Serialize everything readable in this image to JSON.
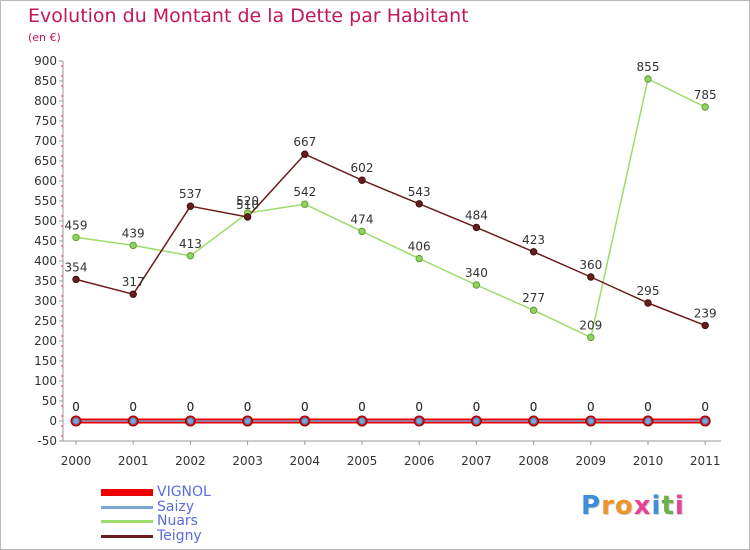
{
  "chart_data": {
    "type": "line",
    "title": "Evolution du Montant de la Dette par Habitant",
    "subtitle": "(en €)",
    "categories": [
      "2000",
      "2001",
      "2002",
      "2003",
      "2004",
      "2005",
      "2006",
      "2007",
      "2008",
      "2009",
      "2010",
      "2011"
    ],
    "ylim": [
      -50,
      900
    ],
    "yticks": [
      -50,
      0,
      50,
      100,
      150,
      200,
      250,
      300,
      350,
      400,
      450,
      500,
      550,
      600,
      650,
      700,
      750,
      800,
      850,
      900
    ],
    "grid": false,
    "legend_position": "bottom-left",
    "series": [
      {
        "name": "VIGNOL",
        "color": "#ee0000",
        "values": [
          0,
          0,
          0,
          0,
          0,
          0,
          0,
          0,
          0,
          0,
          0,
          0
        ]
      },
      {
        "name": "Saizy",
        "color": "#7aa6d6",
        "values": [
          0,
          0,
          0,
          0,
          0,
          0,
          0,
          0,
          0,
          0,
          0,
          0
        ]
      },
      {
        "name": "Nuars",
        "color": "#9bdc6a",
        "values": [
          459,
          439,
          413,
          520,
          542,
          474,
          406,
          340,
          277,
          209,
          855,
          785
        ]
      },
      {
        "name": "Teigny",
        "color": "#6b1c1c",
        "values": [
          354,
          317,
          537,
          510,
          667,
          602,
          543,
          484,
          423,
          360,
          295,
          239
        ]
      }
    ]
  },
  "logo": {
    "letters": [
      "P",
      "r",
      "o",
      "x",
      "i",
      "t",
      "i"
    ],
    "colors": [
      "#3f8fd8",
      "#f0932b",
      "#f0932b",
      "#e84393",
      "#3f8fd8",
      "#6ab04c",
      "#e84393"
    ]
  }
}
